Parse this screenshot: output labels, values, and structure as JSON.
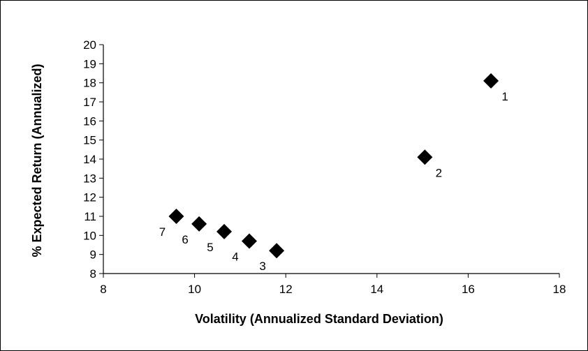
{
  "chart_data": {
    "type": "scatter",
    "xlabel": "Volatility (Annualized Standard Deviation)",
    "ylabel": "% Expected Return (Annualized)",
    "xlim": [
      8,
      18
    ],
    "ylim": [
      8,
      20
    ],
    "x_ticks": [
      8,
      10,
      12,
      14,
      16,
      18
    ],
    "y_ticks": [
      8,
      9,
      10,
      11,
      12,
      13,
      14,
      15,
      16,
      17,
      18,
      19,
      20
    ],
    "grid": false,
    "legend": "none",
    "marker": "diamond",
    "marker_color": "#000000",
    "points": [
      {
        "label": "1",
        "x": 16.5,
        "y": 18.1
      },
      {
        "label": "2",
        "x": 15.05,
        "y": 14.1
      },
      {
        "label": "3",
        "x": 11.8,
        "y": 9.2
      },
      {
        "label": "4",
        "x": 11.2,
        "y": 9.7
      },
      {
        "label": "5",
        "x": 10.65,
        "y": 10.2
      },
      {
        "label": "6",
        "x": 10.1,
        "y": 10.6
      },
      {
        "label": "7",
        "x": 9.6,
        "y": 11.0
      }
    ]
  }
}
